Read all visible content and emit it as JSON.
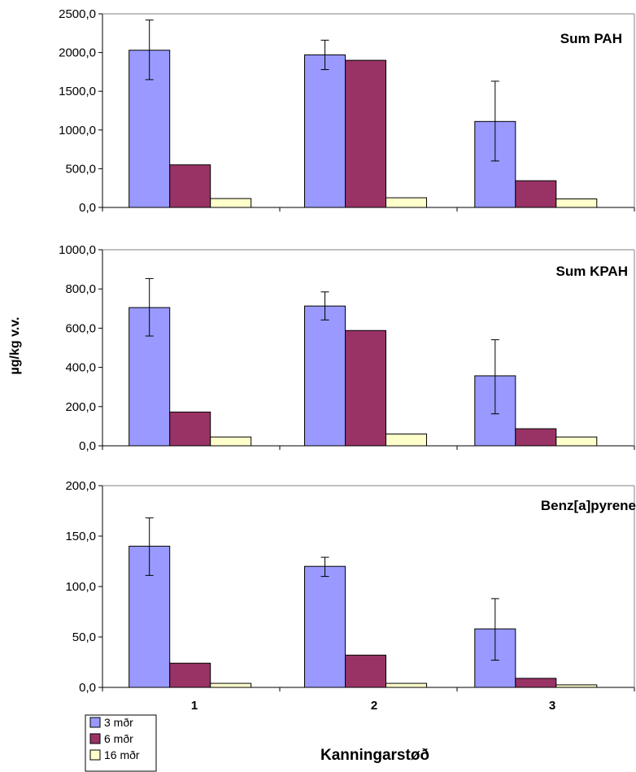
{
  "chart_data": {
    "type": "bar",
    "ylabel": "µg/kg v.v.",
    "xlabel": "Kanningarstøð",
    "categories": [
      "1",
      "2",
      "3"
    ],
    "legend": {
      "placement": "bottom-left",
      "entries": [
        "3 mðr",
        "6 mðr",
        "16 mðr"
      ]
    },
    "colors": [
      "#9999ff",
      "#993366",
      "#ffffcc"
    ],
    "grid": false,
    "panels": [
      {
        "title": "Sum PAH",
        "ylim": [
          0,
          2500
        ],
        "yticks": [
          "0,0",
          "500,0",
          "1000,0",
          "1500,0",
          "2000,0",
          "2500,0"
        ],
        "series": [
          {
            "name": "3 mðr",
            "values": [
              2030,
              1970,
              1110
            ],
            "error": [
              [
                1650,
                2420
              ],
              [
                1780,
                2160
              ],
              [
                600,
                1630
              ]
            ]
          },
          {
            "name": "6 mðr",
            "values": [
              550,
              1900,
              345
            ]
          },
          {
            "name": "16 mðr",
            "values": [
              115,
              125,
              110
            ]
          }
        ]
      },
      {
        "title": "Sum KPAH",
        "ylim": [
          0,
          1000
        ],
        "yticks": [
          "0,0",
          "200,0",
          "400,0",
          "600,0",
          "800,0",
          "1000,0"
        ],
        "series": [
          {
            "name": "3 mðr",
            "values": [
              705,
              713,
              357
            ],
            "error": [
              [
                560,
                853
              ],
              [
                642,
                785
              ],
              [
                163,
                541
              ]
            ]
          },
          {
            "name": "6 mðr",
            "values": [
              172,
              588,
              87
            ]
          },
          {
            "name": "16 mðr",
            "values": [
              45,
              60,
              45
            ]
          }
        ]
      },
      {
        "title": "Benz[a]pyrene",
        "ylim": [
          0,
          200
        ],
        "yticks": [
          "0,0",
          "50,0",
          "100,0",
          "150,0",
          "200,0"
        ],
        "series": [
          {
            "name": "3 mðr",
            "values": [
              140,
              120,
              58
            ],
            "error": [
              [
                111,
                168
              ],
              [
                110,
                129
              ],
              [
                27,
                88
              ]
            ]
          },
          {
            "name": "6 mðr",
            "values": [
              24,
              32,
              9
            ]
          },
          {
            "name": "16 mðr",
            "values": [
              4,
              4,
              2.5
            ]
          }
        ]
      }
    ]
  }
}
